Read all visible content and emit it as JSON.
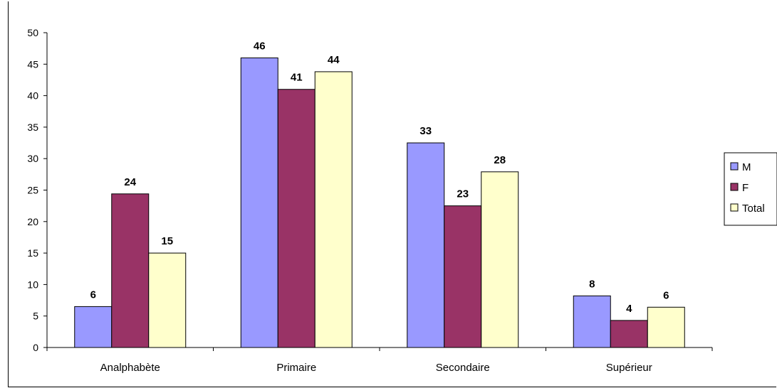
{
  "chart_data": {
    "type": "bar",
    "title": "",
    "xlabel": "",
    "ylabel": "",
    "categories": [
      "Analphabète",
      "Primaire",
      "Secondaire",
      "Supérieur"
    ],
    "series": [
      {
        "name": "M",
        "values": [
          6.5,
          46,
          32.5,
          8.2
        ],
        "labels": [
          "6",
          "46",
          "33",
          "8"
        ],
        "color": "#9999FF"
      },
      {
        "name": "F",
        "values": [
          24.4,
          41,
          22.5,
          4.3
        ],
        "labels": [
          "24",
          "41",
          "23",
          "4"
        ],
        "color": "#993366"
      },
      {
        "name": "Total",
        "values": [
          15,
          43.8,
          27.9,
          6.4
        ],
        "labels": [
          "15",
          "44",
          "28",
          "6"
        ],
        "color": "#FFFFCC"
      }
    ],
    "ylim": [
      0,
      50
    ],
    "yticks": [
      0,
      5,
      10,
      15,
      20,
      25,
      30,
      35,
      40,
      45,
      50
    ],
    "grid": false,
    "legend": "right"
  }
}
